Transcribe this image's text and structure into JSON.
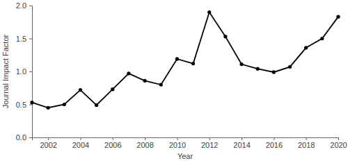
{
  "chart_data": {
    "type": "line",
    "x_label": "Year",
    "y_label": "Journal Impact Factor",
    "x": [
      2001,
      2002,
      2003,
      2004,
      2005,
      2006,
      2007,
      2008,
      2009,
      2010,
      2011,
      2012,
      2013,
      2014,
      2015,
      2016,
      2017,
      2018,
      2019,
      2020
    ],
    "values": [
      0.53,
      0.45,
      0.5,
      0.72,
      0.49,
      0.73,
      0.97,
      0.86,
      0.8,
      1.19,
      1.12,
      1.9,
      1.53,
      1.11,
      1.04,
      0.99,
      1.07,
      1.36,
      1.5,
      1.83
    ],
    "color": "#000000",
    "marker": "circle",
    "xlim": [
      2001,
      2020
    ],
    "xticks": [
      2002,
      2004,
      2006,
      2008,
      2010,
      2012,
      2014,
      2016,
      2018,
      2020
    ],
    "ylim": [
      0,
      2
    ],
    "yticks": [
      {
        "value": 0,
        "label": "0.0"
      },
      0.5,
      {
        "value": 1,
        "label": "1.0"
      },
      1.5,
      {
        "value": 2,
        "label": "2.0"
      }
    ],
    "grid": false
  }
}
